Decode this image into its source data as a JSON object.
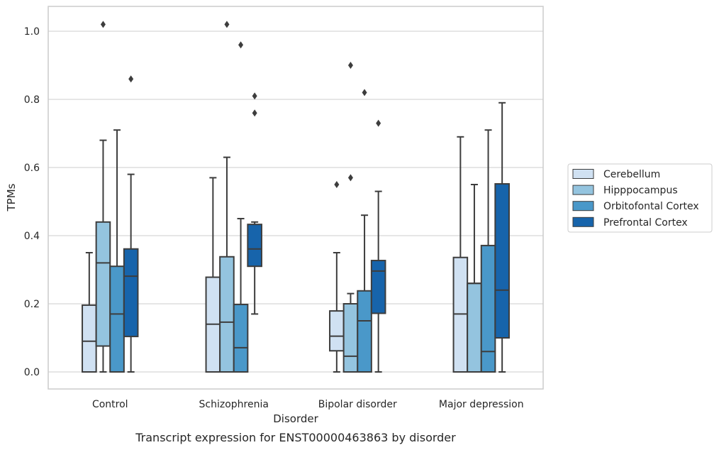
{
  "chart_data": {
    "type": "box",
    "title": "",
    "caption": "Transcript expression for ENST00000463863 by disorder",
    "xlabel": "Disorder",
    "ylabel": "TPMs",
    "ylim": [
      -0.05,
      1.075
    ],
    "yticks": [
      0.0,
      0.2,
      0.4,
      0.6,
      0.8,
      1.0
    ],
    "ytick_labels": [
      "0.0",
      "0.2",
      "0.4",
      "0.6",
      "0.8",
      "1.0"
    ],
    "grid": "horizontal",
    "legend_position": "right",
    "categories": [
      "Control",
      "Schizophrenia",
      "Bipolar disorder",
      "Major depression"
    ],
    "series": [
      {
        "name": "Cerebellum",
        "color": "#d0e1f2",
        "boxes": [
          {
            "whislo": 0.0,
            "q1": 0.0,
            "med": 0.09,
            "q3": 0.196,
            "whishi": 0.35,
            "fliers": []
          },
          {
            "whislo": 0.0,
            "q1": 0.0,
            "med": 0.14,
            "q3": 0.278,
            "whishi": 0.57,
            "fliers": []
          },
          {
            "whislo": 0.0,
            "q1": 0.062,
            "med": 0.105,
            "q3": 0.179,
            "whishi": 0.35,
            "fliers": [
              0.55
            ]
          },
          {
            "whislo": 0.0,
            "q1": 0.0,
            "med": 0.17,
            "q3": 0.336,
            "whishi": 0.69,
            "fliers": []
          }
        ]
      },
      {
        "name": "Hipppocampus",
        "color": "#94c4df",
        "boxes": [
          {
            "whislo": 0.0,
            "q1": 0.076,
            "med": 0.32,
            "q3": 0.44,
            "whishi": 0.68,
            "fliers": [
              1.02
            ]
          },
          {
            "whislo": 0.0,
            "q1": 0.0,
            "med": 0.146,
            "q3": 0.338,
            "whishi": 0.63,
            "fliers": [
              1.02
            ]
          },
          {
            "whislo": 0.0,
            "q1": 0.0,
            "med": 0.046,
            "q3": 0.2,
            "whishi": 0.23,
            "fliers": [
              0.57,
              0.9
            ]
          },
          {
            "whislo": 0.0,
            "q1": 0.0,
            "med": 0.26,
            "q3": 0.26,
            "whishi": 0.55,
            "fliers": []
          }
        ]
      },
      {
        "name": "Orbitofontal Cortex",
        "color": "#4a98c9",
        "boxes": [
          {
            "whislo": 0.0,
            "q1": 0.0,
            "med": 0.17,
            "q3": 0.31,
            "whishi": 0.71,
            "fliers": []
          },
          {
            "whislo": 0.0,
            "q1": 0.0,
            "med": 0.071,
            "q3": 0.198,
            "whishi": 0.45,
            "fliers": [
              0.96
            ]
          },
          {
            "whislo": 0.0,
            "q1": 0.0,
            "med": 0.15,
            "q3": 0.238,
            "whishi": 0.46,
            "fliers": [
              0.82
            ]
          },
          {
            "whislo": 0.0,
            "q1": 0.0,
            "med": 0.06,
            "q3": 0.371,
            "whishi": 0.71,
            "fliers": []
          }
        ]
      },
      {
        "name": "Prefrontal Cortex",
        "color": "#1764ab",
        "boxes": [
          {
            "whislo": 0.0,
            "q1": 0.104,
            "med": 0.281,
            "q3": 0.361,
            "whishi": 0.58,
            "fliers": [
              0.86
            ]
          },
          {
            "whislo": 0.17,
            "q1": 0.31,
            "med": 0.361,
            "q3": 0.433,
            "whishi": 0.44,
            "fliers": [
              0.76,
              0.81
            ]
          },
          {
            "whislo": 0.0,
            "q1": 0.172,
            "med": 0.296,
            "q3": 0.327,
            "whishi": 0.53,
            "fliers": [
              0.73
            ]
          },
          {
            "whislo": 0.0,
            "q1": 0.1,
            "med": 0.24,
            "q3": 0.552,
            "whishi": 0.79,
            "fliers": []
          }
        ]
      }
    ]
  }
}
